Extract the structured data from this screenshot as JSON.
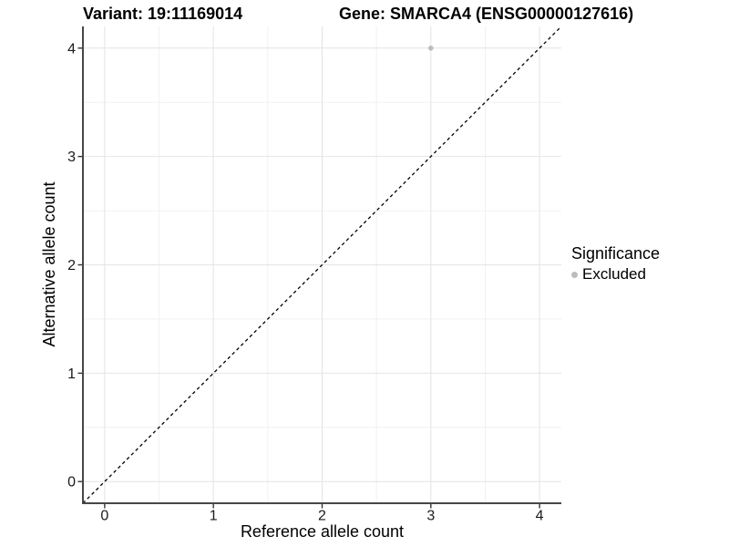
{
  "chart_data": {
    "type": "scatter",
    "titles": {
      "left": "Variant: 19:11169014",
      "right": "Gene: SMARCA4 (ENSG00000127616)"
    },
    "xlabel": "Reference allele count",
    "ylabel": "Alternative allele count",
    "xlim": [
      -0.2,
      4.2
    ],
    "ylim": [
      -0.2,
      4.2
    ],
    "xticks": [
      0,
      1,
      2,
      3,
      4
    ],
    "yticks": [
      0,
      1,
      2,
      3,
      4
    ],
    "minor_grid_step": 0.5,
    "grid": "on",
    "series": [
      {
        "name": "Excluded",
        "color": "#bcbcbc",
        "points": [
          {
            "x": 3,
            "y": 4
          }
        ]
      }
    ],
    "reference_line": {
      "kind": "abline",
      "slope": 1,
      "intercept": 0,
      "style": "dashed",
      "color": "#000000"
    },
    "legend": {
      "position": "right",
      "title": "Significance",
      "items": [
        {
          "label": "Excluded",
          "color": "#bcbcbc"
        }
      ]
    },
    "style": {
      "background": "#ffffff",
      "major_grid_color": "#e4e4e4",
      "minor_grid_color": "#f1f1f1",
      "axis_line_color": "#474747",
      "tick_mark_color": "#333333",
      "tick_label_color": "#1a1a1a"
    }
  }
}
